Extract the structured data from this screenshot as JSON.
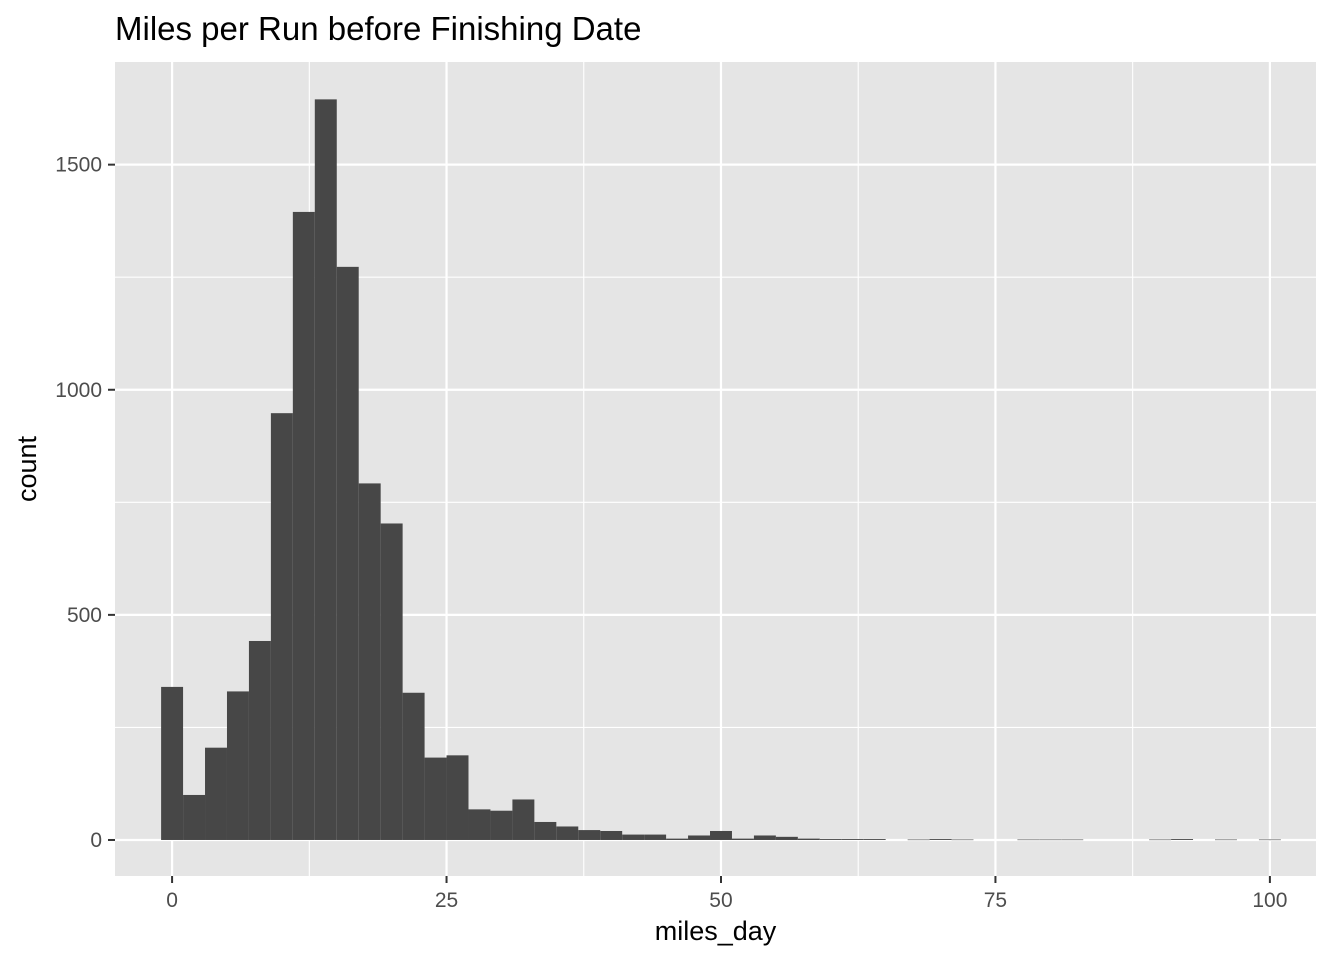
{
  "chart_data": {
    "type": "bar",
    "subtype": "histogram",
    "title": "Miles per Run before Finishing Date",
    "xlabel": "miles_day",
    "ylabel": "count",
    "xlim": [
      -5.2,
      104.2
    ],
    "ylim": [
      -80,
      1728
    ],
    "x_ticks": [
      0,
      25,
      50,
      75,
      100
    ],
    "x_tick_labels": [
      "0",
      "25",
      "50",
      "75",
      "100"
    ],
    "y_ticks": [
      0,
      500,
      1000,
      1500
    ],
    "y_tick_labels": [
      "0",
      "500",
      "1000",
      "1500"
    ],
    "bin_width": 2,
    "bin_centers": [
      0,
      2,
      4,
      6,
      8,
      10,
      12,
      14,
      16,
      18,
      20,
      22,
      24,
      26,
      28,
      30,
      32,
      34,
      36,
      38,
      40,
      42,
      44,
      46,
      48,
      50,
      52,
      54,
      56,
      58,
      60,
      62,
      64,
      66,
      68,
      70,
      72,
      74,
      76,
      78,
      80,
      82,
      84,
      86,
      88,
      90,
      92,
      94,
      96,
      98,
      100
    ],
    "values": [
      340,
      100,
      205,
      330,
      442,
      948,
      1395,
      1645,
      1273,
      792,
      703,
      327,
      183,
      188,
      68,
      65,
      90,
      40,
      30,
      22,
      20,
      12,
      12,
      3,
      10,
      20,
      3,
      10,
      7,
      3,
      2,
      2,
      2,
      0,
      1,
      2,
      1,
      0,
      0,
      1,
      1,
      1,
      0,
      0,
      0,
      1,
      2,
      0,
      1,
      0,
      1
    ],
    "bar_color": "#474747",
    "panel_background": "#e5e5e5",
    "grid_color": "#ffffff",
    "grid": true,
    "legend": "none"
  }
}
